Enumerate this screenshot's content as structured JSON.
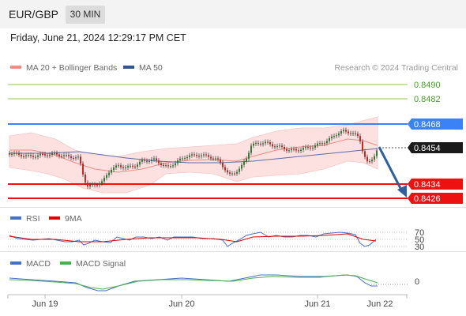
{
  "header": {
    "symbol": "EUR/GBP",
    "timeframe": "30 MIN"
  },
  "datetime": "Friday, June 21, 2024 12:29:17 PM CET",
  "legend_main": {
    "ma20": "MA 20 + Bollinger Bands",
    "ma50": "MA 50",
    "attribution": "Research © 2024 Trading Central"
  },
  "legend_rsi": {
    "rsi": "RSI",
    "ma9": "9MA"
  },
  "legend_macd": {
    "macd": "MACD",
    "signal": "MACD Signal"
  },
  "levels": [
    {
      "label": "0.8490",
      "color": "#6aa84f",
      "kind": "resistance"
    },
    {
      "label": "0.8482",
      "color": "#6aa84f",
      "kind": "resistance"
    },
    {
      "label": "0.8468",
      "color": "#3b82f6",
      "kind": "pivot"
    },
    {
      "label": "0.8454",
      "color": "#222222",
      "kind": "last-price"
    },
    {
      "label": "0.8434",
      "color": "#ee1111",
      "kind": "support"
    },
    {
      "label": "0.8426",
      "color": "#ee1111",
      "kind": "support"
    }
  ],
  "rsi_ticks": [
    "70",
    "50",
    "30"
  ],
  "macd_ticks": [
    "0"
  ],
  "x_ticks": [
    "Jun 19",
    "Jun 20",
    "Jun 21",
    "Jun 22"
  ],
  "colors": {
    "ma20": "#f28b82",
    "ma50": "#2f5597",
    "bollinger": "#fde0e0",
    "up": "#2e7d32",
    "down": "#c62828",
    "rsi": "#4472c4",
    "rsi_ma": "#e00000",
    "macd": "#4472c4",
    "macd_signal": "#4caf50",
    "arrow": "#2f5fa0"
  }
}
